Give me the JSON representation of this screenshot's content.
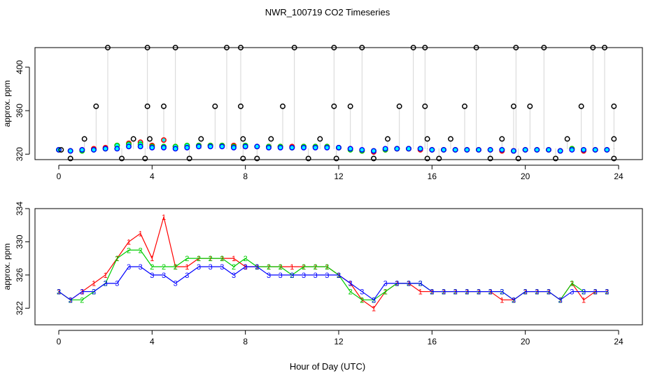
{
  "figure": {
    "title": "NWR_100719  CO2 Timeseries",
    "xlabel": "Hour of Day (UTC)"
  },
  "colors": {
    "series_1": "#ff0000",
    "series_2": "#00cd00",
    "series_3": "#0000ff",
    "fill_top": "#00ffff",
    "flag": "#000000",
    "spike_line": "#aaaaaa"
  },
  "chart_data": [
    {
      "type": "scatter",
      "panel": "top",
      "ylabel": "approx. ppm",
      "xlim": [
        0,
        24
      ],
      "ylim": [
        315,
        418
      ],
      "xticks": [
        0,
        4,
        8,
        12,
        16,
        20,
        24
      ],
      "yticks": [
        320,
        360,
        400
      ],
      "grid": false,
      "legend": "none",
      "baseline_series": [
        {
          "name": "1",
          "x": [
            0,
            0.5,
            1,
            1.5,
            2,
            2.5,
            3,
            3.5,
            4,
            4.5,
            5,
            5.5,
            6,
            6.5,
            7,
            7.5,
            8,
            8.5,
            9,
            9.5,
            10,
            10.5,
            11,
            11.5,
            12,
            12.5,
            13,
            13.5,
            14,
            14.5,
            15,
            15.5,
            16,
            16.5,
            17,
            17.5,
            18,
            18.5,
            19,
            19.5,
            20,
            20.5,
            21,
            21.5,
            22,
            22.5,
            23,
            23.5
          ],
          "y": [
            324,
            323,
            324,
            325,
            326,
            328,
            330,
            331,
            328,
            333,
            327,
            327,
            328,
            328,
            328,
            328,
            327,
            327,
            327,
            327,
            327,
            327,
            327,
            327,
            326,
            325,
            323,
            322,
            324,
            325,
            325,
            324,
            324,
            324,
            324,
            324,
            324,
            324,
            323,
            323,
            324,
            324,
            324,
            323,
            325,
            323,
            324,
            324
          ]
        },
        {
          "name": "2",
          "x": [
            0,
            0.5,
            1,
            1.5,
            2,
            2.5,
            3,
            3.5,
            4,
            4.5,
            5,
            5.5,
            6,
            6.5,
            7,
            7.5,
            8,
            8.5,
            9,
            9.5,
            10,
            10.5,
            11,
            11.5,
            12,
            12.5,
            13,
            13.5,
            14,
            14.5,
            15,
            15.5,
            16,
            16.5,
            17,
            17.5,
            18,
            18.5,
            19,
            19.5,
            20,
            20.5,
            21,
            21.5,
            22,
            22.5,
            23,
            23.5
          ],
          "y": [
            324,
            323,
            323,
            324,
            325,
            328,
            329,
            329,
            327,
            327,
            327,
            328,
            328,
            328,
            328,
            327,
            328,
            327,
            327,
            327,
            326,
            327,
            327,
            327,
            326,
            324,
            323,
            323,
            324,
            325,
            325,
            325,
            324,
            324,
            324,
            324,
            324,
            324,
            324,
            323,
            324,
            324,
            324,
            323,
            325,
            324,
            324,
            324
          ]
        },
        {
          "name": "3",
          "x": [
            0,
            0.5,
            1,
            1.5,
            2,
            2.5,
            3,
            3.5,
            4,
            4.5,
            5,
            5.5,
            6,
            6.5,
            7,
            7.5,
            8,
            8.5,
            9,
            9.5,
            10,
            10.5,
            11,
            11.5,
            12,
            12.5,
            13,
            13.5,
            14,
            14.5,
            15,
            15.5,
            16,
            16.5,
            17,
            17.5,
            18,
            18.5,
            19,
            19.5,
            20,
            20.5,
            21,
            21.5,
            22,
            22.5,
            23,
            23.5
          ],
          "y": [
            324,
            323,
            324,
            324,
            325,
            325,
            327,
            327,
            326,
            326,
            325,
            326,
            327,
            327,
            327,
            326,
            327,
            327,
            326,
            326,
            326,
            326,
            326,
            326,
            326,
            325,
            324,
            323,
            325,
            325,
            325,
            325,
            324,
            324,
            324,
            324,
            324,
            324,
            324,
            323,
            324,
            324,
            324,
            323,
            324,
            324,
            324,
            324
          ]
        }
      ],
      "flag_points": {
        "x": [
          0.1,
          0.5,
          1.1,
          1.6,
          2.1,
          2.7,
          3.2,
          3.7,
          3.8,
          3.8,
          3.9,
          4.5,
          5.0,
          5.6,
          6.1,
          6.7,
          7.2,
          7.8,
          7.8,
          7.9,
          7.9,
          8.5,
          9.1,
          9.6,
          10.1,
          10.7,
          11.2,
          11.8,
          11.8,
          11.9,
          12.5,
          13.0,
          13.5,
          14.1,
          14.6,
          15.2,
          15.7,
          15.7,
          15.8,
          15.8,
          16.3,
          16.8,
          17.4,
          17.9,
          18.5,
          19.0,
          19.5,
          19.6,
          19.7,
          20.2,
          20.8,
          21.3,
          21.8,
          22.4,
          22.9,
          23.4,
          23.8,
          23.8,
          23.8
        ],
        "y": [
          324,
          316,
          334,
          364,
          418,
          316,
          334,
          316,
          418,
          364,
          334,
          364,
          418,
          316,
          334,
          364,
          418,
          418,
          364,
          334,
          316,
          316,
          334,
          364,
          418,
          316,
          334,
          364,
          418,
          316,
          364,
          418,
          316,
          334,
          364,
          418,
          418,
          364,
          334,
          316,
          316,
          334,
          364,
          418,
          316,
          334,
          364,
          418,
          316,
          364,
          418,
          316,
          334,
          364,
          418,
          418,
          364,
          334,
          316
        ]
      }
    },
    {
      "type": "line",
      "panel": "bottom",
      "ylabel": "approx. ppm",
      "xlim": [
        0,
        24
      ],
      "ylim": [
        320,
        334
      ],
      "xticks": [
        0,
        4,
        8,
        12,
        16,
        20,
        24
      ],
      "yticks": [
        322,
        326,
        330,
        334
      ],
      "grid": false,
      "legend": "none",
      "series": [
        {
          "name": "1",
          "x": [
            0,
            0.5,
            1,
            1.5,
            2,
            2.5,
            3,
            3.5,
            4,
            4.5,
            5,
            5.5,
            6,
            6.5,
            7,
            7.5,
            8,
            8.5,
            9,
            9.5,
            10,
            10.5,
            11,
            11.5,
            12,
            12.5,
            13,
            13.5,
            14,
            14.5,
            15,
            15.5,
            16,
            16.5,
            17,
            17.5,
            18,
            18.5,
            19,
            19.5,
            20,
            20.5,
            21,
            21.5,
            22,
            22.5,
            23,
            23.5
          ],
          "y": [
            324,
            323,
            324,
            325,
            326,
            328,
            330,
            331,
            328,
            333,
            327,
            327,
            328,
            328,
            328,
            328,
            327,
            327,
            327,
            327,
            327,
            327,
            327,
            327,
            326,
            325,
            323,
            322,
            324,
            325,
            325,
            324,
            324,
            324,
            324,
            324,
            324,
            324,
            323,
            323,
            324,
            324,
            324,
            323,
            325,
            323,
            324,
            324
          ]
        },
        {
          "name": "2",
          "x": [
            0,
            0.5,
            1,
            1.5,
            2,
            2.5,
            3,
            3.5,
            4,
            4.5,
            5,
            5.5,
            6,
            6.5,
            7,
            7.5,
            8,
            8.5,
            9,
            9.5,
            10,
            10.5,
            11,
            11.5,
            12,
            12.5,
            13,
            13.5,
            14,
            14.5,
            15,
            15.5,
            16,
            16.5,
            17,
            17.5,
            18,
            18.5,
            19,
            19.5,
            20,
            20.5,
            21,
            21.5,
            22,
            22.5,
            23,
            23.5
          ],
          "y": [
            324,
            323,
            323,
            324,
            325,
            328,
            329,
            329,
            327,
            327,
            327,
            328,
            328,
            328,
            328,
            327,
            328,
            327,
            327,
            327,
            326,
            327,
            327,
            327,
            326,
            324,
            323,
            323,
            324,
            325,
            325,
            325,
            324,
            324,
            324,
            324,
            324,
            324,
            324,
            323,
            324,
            324,
            324,
            323,
            325,
            324,
            324,
            324
          ]
        },
        {
          "name": "3",
          "x": [
            0,
            0.5,
            1,
            1.5,
            2,
            2.5,
            3,
            3.5,
            4,
            4.5,
            5,
            5.5,
            6,
            6.5,
            7,
            7.5,
            8,
            8.5,
            9,
            9.5,
            10,
            10.5,
            11,
            11.5,
            12,
            12.5,
            13,
            13.5,
            14,
            14.5,
            15,
            15.5,
            16,
            16.5,
            17,
            17.5,
            18,
            18.5,
            19,
            19.5,
            20,
            20.5,
            21,
            21.5,
            22,
            22.5,
            23,
            23.5
          ],
          "y": [
            324,
            323,
            324,
            324,
            325,
            325,
            327,
            327,
            326,
            326,
            325,
            326,
            327,
            327,
            327,
            326,
            327,
            327,
            326,
            326,
            326,
            326,
            326,
            326,
            326,
            325,
            324,
            323,
            325,
            325,
            325,
            325,
            324,
            324,
            324,
            324,
            324,
            324,
            324,
            323,
            324,
            324,
            324,
            323,
            324,
            324,
            324,
            324
          ]
        }
      ]
    }
  ]
}
